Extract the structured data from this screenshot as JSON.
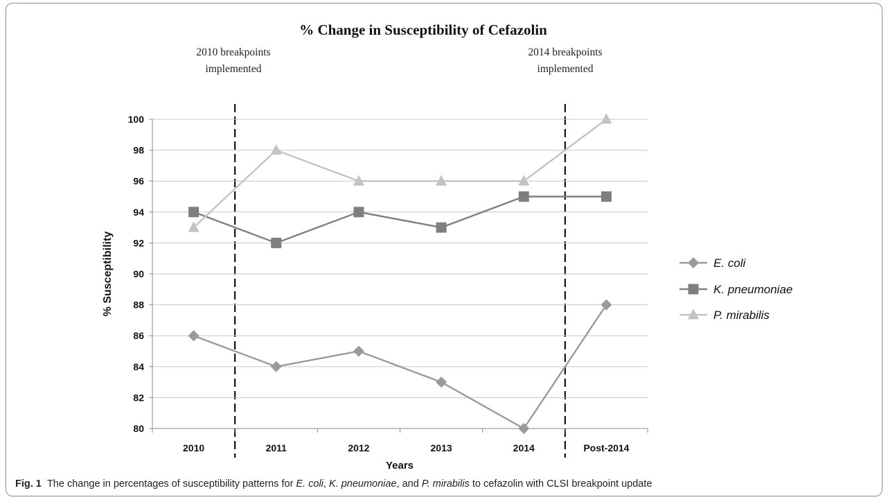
{
  "chart_data": {
    "type": "line",
    "title": "% Change in Susceptibility of Cefazolin",
    "xlabel": "Years",
    "ylabel": "% Susceptibility",
    "categories": [
      "2010",
      "2011",
      "2012",
      "2013",
      "2014",
      "Post-2014"
    ],
    "ylim": [
      80,
      100
    ],
    "yticks": [
      80,
      82,
      84,
      86,
      88,
      90,
      92,
      94,
      96,
      98,
      100
    ],
    "grid": true,
    "legend_position": "right",
    "series": [
      {
        "name": "E. coli",
        "marker": "diamond",
        "color": "#9a9a9a",
        "values": [
          86,
          84,
          85,
          83,
          80,
          88
        ]
      },
      {
        "name": "K. pneumoniae",
        "marker": "square",
        "color": "#7f7f7f",
        "values": [
          94,
          92,
          94,
          93,
          95,
          95
        ]
      },
      {
        "name": "P. mirabilis",
        "marker": "triangle",
        "color": "#c3c3c3",
        "values": [
          93,
          98,
          96,
          96,
          96,
          100
        ]
      }
    ],
    "annotations": [
      {
        "text_line1": "2010 breakpoints",
        "text_line2": "implemented",
        "between": [
          "2010",
          "2011"
        ]
      },
      {
        "text_line1": "2014 breakpoints",
        "text_line2": "implemented",
        "between": [
          "2014",
          "Post-2014"
        ]
      }
    ]
  },
  "caption": {
    "label": "Fig. 1",
    "text_before": "The change in percentages of susceptibility patterns for ",
    "org1": "E. coli",
    "sep1": ", ",
    "org2": "K. pneumoniae",
    "sep2": ", and ",
    "org3": "P. mirabilis",
    "text_after": " to cefazolin with CLSI breakpoint update"
  }
}
